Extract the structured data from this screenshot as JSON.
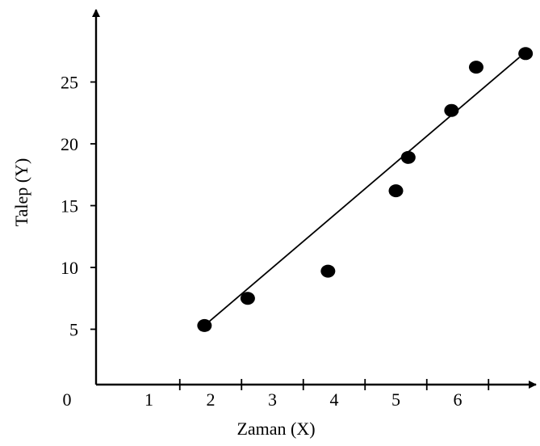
{
  "chart_data": {
    "type": "scatter",
    "title": "",
    "xlabel": "Zaman (X)",
    "ylabel": "Talep (Y)",
    "origin_label": "0",
    "x_ticks": [
      1,
      2,
      3,
      4,
      5,
      6
    ],
    "y_ticks": [
      5,
      10,
      15,
      20,
      25
    ],
    "xlim": [
      0,
      7.5
    ],
    "ylim": [
      0,
      29
    ],
    "grid": false,
    "legend": "none",
    "point_color": "#000000",
    "line_color": "#000000",
    "points": [
      {
        "x": 1.9,
        "y": 5.3
      },
      {
        "x": 2.6,
        "y": 7.5
      },
      {
        "x": 3.9,
        "y": 9.7
      },
      {
        "x": 5.0,
        "y": 16.2
      },
      {
        "x": 5.2,
        "y": 18.9
      },
      {
        "x": 5.9,
        "y": 22.7
      },
      {
        "x": 6.3,
        "y": 26.2
      },
      {
        "x": 7.1,
        "y": 27.3
      }
    ],
    "trend_line": {
      "x1": 1.9,
      "y1": 5.3,
      "x2": 7.0,
      "y2": 27.0
    }
  }
}
